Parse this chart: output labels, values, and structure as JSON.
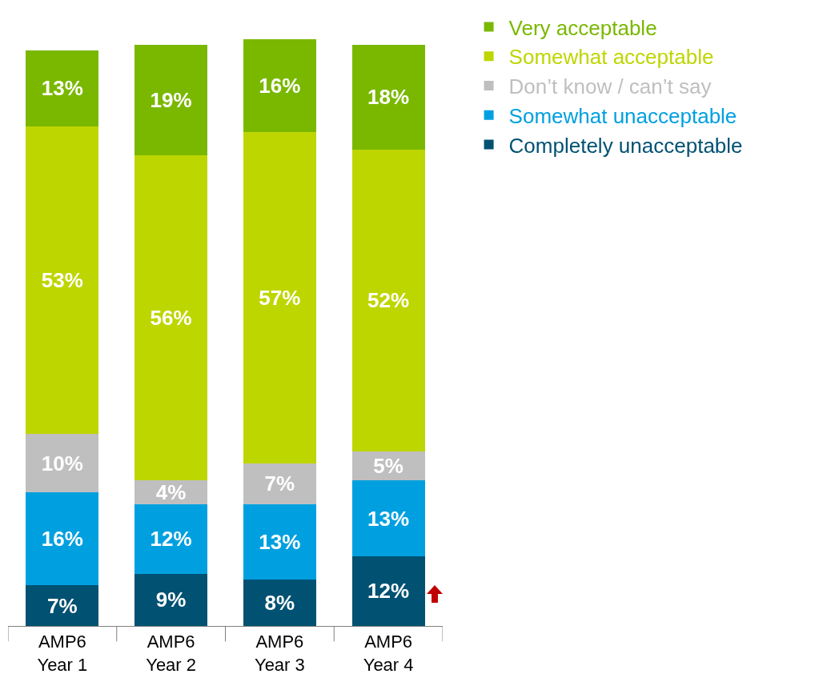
{
  "chart_data": {
    "type": "bar",
    "stacked": true,
    "legend": "right",
    "categories": [
      "AMP6 Year 1",
      "AMP6 Year 2",
      "AMP6 Year 3",
      "AMP6 Year 4"
    ],
    "series": [
      {
        "name": "Completely unacceptable",
        "color": "#005172",
        "values": [
          7,
          9,
          8,
          12
        ],
        "value_labels": [
          "7%",
          "9%",
          "8%",
          "12%"
        ]
      },
      {
        "name": "Somewhat unacceptable",
        "color": "#00a0e0",
        "values": [
          16,
          12,
          13,
          13
        ],
        "value_labels": [
          "16%",
          "12%",
          "13%",
          "13%"
        ]
      },
      {
        "name": "Don’t know / can’t say",
        "color": "#bfbfbf",
        "values": [
          10,
          4,
          7,
          5
        ],
        "value_labels": [
          "10%",
          "4%",
          "7%",
          "5%"
        ]
      },
      {
        "name": "Somewhat acceptable",
        "color": "#bed600",
        "values": [
          53,
          56,
          57,
          52
        ],
        "value_labels": [
          "53%",
          "56%",
          "57%",
          "52%"
        ]
      },
      {
        "name": "Very acceptable",
        "color": "#7ab800",
        "values": [
          13,
          19,
          16,
          18
        ],
        "value_labels": [
          "13%",
          "19%",
          "16%",
          "18%"
        ]
      }
    ]
  }
}
